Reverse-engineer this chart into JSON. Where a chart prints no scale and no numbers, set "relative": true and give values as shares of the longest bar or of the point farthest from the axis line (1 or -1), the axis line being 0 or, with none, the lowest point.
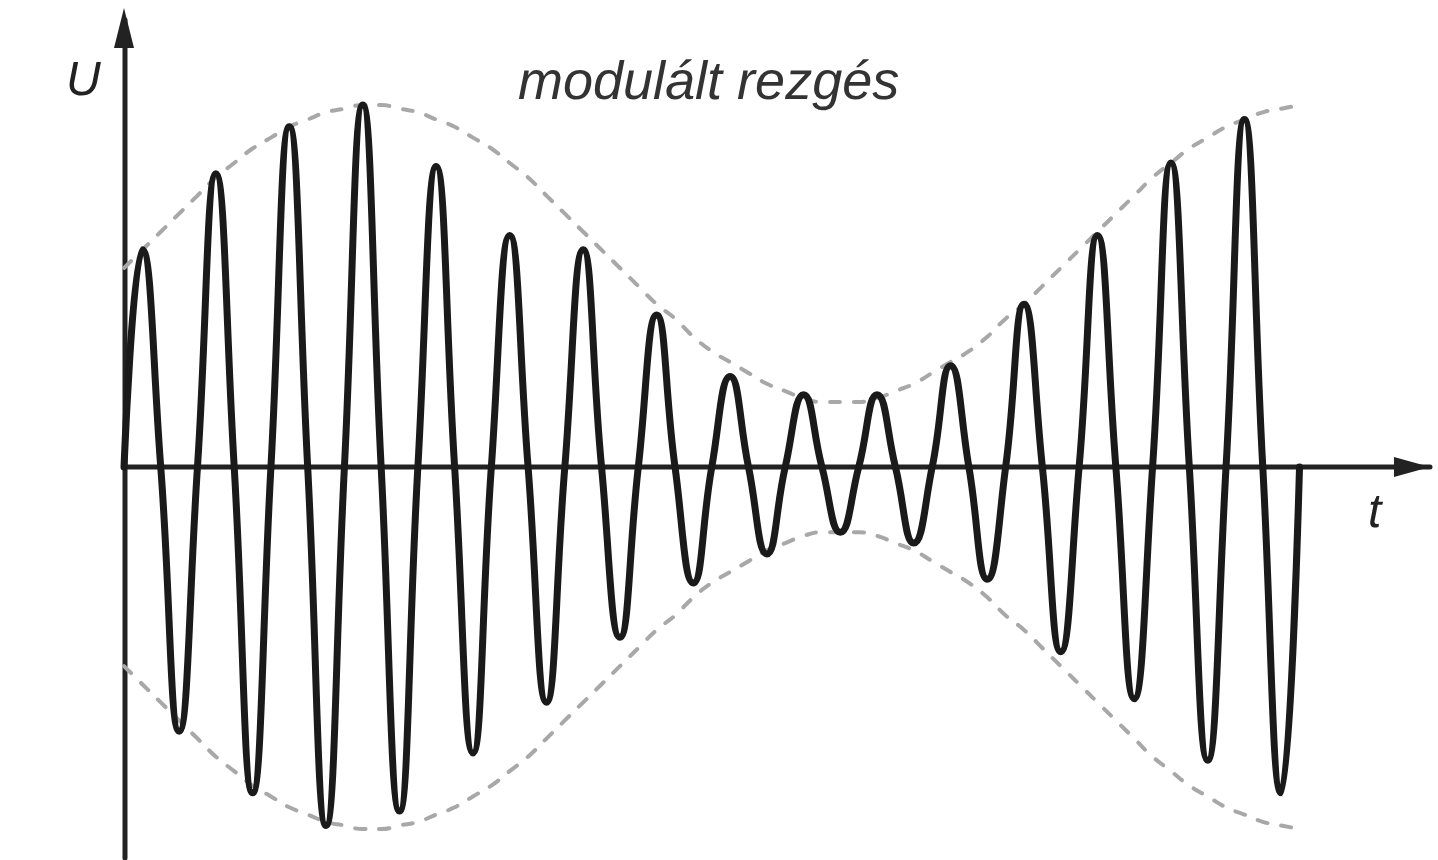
{
  "chart_data": {
    "type": "line",
    "title": "modulált rezgés",
    "xlabel": "t",
    "ylabel": "U",
    "relative": true,
    "marker": "none",
    "tick_labels": false,
    "categories": [
      null,
      null,
      null,
      null,
      null,
      null,
      null,
      null,
      null,
      null,
      null,
      null,
      null,
      null,
      null,
      null,
      null,
      null,
      null,
      null,
      null,
      null,
      null,
      null,
      null,
      null,
      null,
      null,
      null,
      null,
      null,
      null,
      null,
      null,
      null,
      null,
      null,
      null,
      null,
      null,
      null,
      null,
      null,
      null,
      null,
      null,
      null,
      null,
      null,
      null,
      null,
      null,
      null,
      null,
      null,
      null,
      null,
      null,
      null,
      null,
      null,
      null,
      null,
      null,
      null
    ],
    "series": [
      {
        "color": "#1a1a1a",
        "values": [
          0,
          0.6,
          0,
          -0.73,
          0,
          0.81,
          0,
          -0.9,
          0,
          0.94,
          0,
          -0.99,
          0,
          1.0,
          0,
          -0.95,
          0,
          0.83,
          0,
          -0.79,
          0,
          0.64,
          0,
          -0.65,
          0,
          0.6,
          0,
          -0.47,
          0,
          0.42,
          0,
          -0.32,
          0,
          0.25,
          0,
          -0.24,
          0,
          0.2,
          0,
          -0.18,
          0,
          0.2,
          0,
          -0.21,
          0,
          0.28,
          0,
          -0.31,
          0,
          0.45,
          0,
          -0.51,
          0,
          0.64,
          0,
          -0.64,
          0,
          0.84,
          0,
          -0.81,
          0,
          0.96,
          0,
          -0.9,
          0
        ]
      },
      {
        "color": "#a8a8a8",
        "line_style": "dashed",
        "values": [
          0.55,
          0.6,
          0.65,
          0.7,
          0.75,
          0.8,
          0.84,
          0.88,
          0.91,
          0.94,
          0.96,
          0.98,
          0.99,
          1.0,
          1.0,
          0.99,
          0.98,
          0.96,
          0.94,
          0.91,
          0.88,
          0.84,
          0.8,
          0.75,
          0.7,
          0.65,
          0.6,
          0.55,
          0.5,
          0.45,
          0.41,
          0.36,
          0.32,
          0.29,
          0.26,
          0.23,
          0.21,
          0.19,
          0.18,
          0.18,
          0.18,
          0.19,
          0.21,
          0.23,
          0.26,
          0.29,
          0.32,
          0.36,
          0.41,
          0.45,
          0.5,
          0.55,
          0.6,
          0.65,
          0.7,
          0.75,
          0.8,
          0.84,
          0.88,
          0.91,
          0.94,
          0.96,
          0.98,
          0.99,
          1.0
        ]
      },
      {
        "color": "#a8a8a8",
        "line_style": "dashed",
        "values": [
          -0.55,
          -0.6,
          -0.65,
          -0.7,
          -0.75,
          -0.8,
          -0.84,
          -0.88,
          -0.91,
          -0.94,
          -0.96,
          -0.98,
          -0.99,
          -1.0,
          -1.0,
          -0.99,
          -0.98,
          -0.96,
          -0.94,
          -0.91,
          -0.88,
          -0.84,
          -0.8,
          -0.75,
          -0.7,
          -0.65,
          -0.6,
          -0.55,
          -0.5,
          -0.45,
          -0.41,
          -0.36,
          -0.32,
          -0.29,
          -0.26,
          -0.23,
          -0.21,
          -0.19,
          -0.18,
          -0.18,
          -0.18,
          -0.19,
          -0.21,
          -0.23,
          -0.26,
          -0.29,
          -0.32,
          -0.36,
          -0.41,
          -0.45,
          -0.5,
          -0.55,
          -0.6,
          -0.65,
          -0.7,
          -0.75,
          -0.8,
          -0.84,
          -0.88,
          -0.91,
          -0.94,
          -0.96,
          -0.98,
          -0.99,
          -1.0
        ]
      }
    ]
  }
}
